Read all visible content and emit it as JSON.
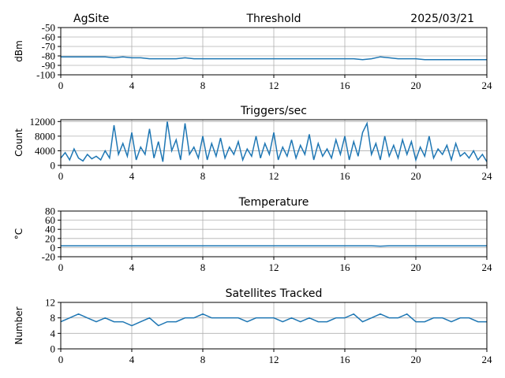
{
  "chart_data": [
    {
      "type": "line",
      "title_left": "AgSite",
      "title": "Threshold",
      "title_right": "2025/03/21",
      "ylabel": "dBm",
      "x": [
        0,
        0.5,
        1,
        1.5,
        2,
        2.5,
        3,
        3.5,
        4,
        4.5,
        5,
        5.5,
        6,
        6.5,
        7,
        7.5,
        8,
        8.5,
        9,
        9.5,
        10,
        10.5,
        11,
        11.5,
        12,
        12.5,
        13,
        13.5,
        14,
        14.5,
        15,
        15.5,
        16,
        16.5,
        17,
        17.5,
        18,
        18.5,
        19,
        19.5,
        20,
        20.5,
        21,
        21.5,
        22,
        22.5,
        23,
        23.5,
        24
      ],
      "series": [
        {
          "color": "#1f77b4",
          "values": [
            -81,
            -81,
            -81,
            -81,
            -81,
            -81,
            -82,
            -81,
            -82,
            -82,
            -83,
            -83,
            -83,
            -83,
            -82,
            -83,
            -83,
            -83,
            -83,
            -83,
            -83,
            -83,
            -83,
            -83,
            -83,
            -83,
            -83,
            -83,
            -83,
            -83,
            -83,
            -83,
            -83,
            -83,
            -84,
            -83,
            -81,
            -82,
            -83,
            -83,
            -83,
            -84,
            -84,
            -84,
            -84,
            -84,
            -84,
            -84,
            -84
          ]
        }
      ],
      "xlim": [
        0,
        24
      ],
      "xticks": [
        0,
        4,
        8,
        12,
        16,
        20,
        24
      ],
      "ylim": [
        -100,
        -50
      ],
      "yticks": [
        -100,
        -90,
        -80,
        -70,
        -60,
        -50
      ],
      "grid": true
    },
    {
      "type": "line",
      "title": "Triggers/sec",
      "ylabel": "Count",
      "x": [
        0,
        0.25,
        0.5,
        0.75,
        1,
        1.25,
        1.5,
        1.75,
        2,
        2.25,
        2.5,
        2.75,
        3,
        3.25,
        3.5,
        3.75,
        4,
        4.25,
        4.5,
        4.75,
        5,
        5.25,
        5.5,
        5.75,
        6,
        6.25,
        6.5,
        6.75,
        7,
        7.25,
        7.5,
        7.75,
        8,
        8.25,
        8.5,
        8.75,
        9,
        9.25,
        9.5,
        9.75,
        10,
        10.25,
        10.5,
        10.75,
        11,
        11.25,
        11.5,
        11.75,
        12,
        12.25,
        12.5,
        12.75,
        13,
        13.25,
        13.5,
        13.75,
        14,
        14.25,
        14.5,
        14.75,
        15,
        15.25,
        15.5,
        15.75,
        16,
        16.25,
        16.5,
        16.75,
        17,
        17.25,
        17.5,
        17.75,
        18,
        18.25,
        18.5,
        18.75,
        19,
        19.25,
        19.5,
        19.75,
        20,
        20.25,
        20.5,
        20.75,
        21,
        21.25,
        21.5,
        21.75,
        22,
        22.25,
        22.5,
        22.75,
        23,
        23.25,
        23.5,
        23.75,
        24
      ],
      "series": [
        {
          "color": "#1f77b4",
          "values": [
            2000,
            3500,
            1500,
            4500,
            2000,
            1200,
            3000,
            1800,
            2500,
            1500,
            4000,
            2000,
            11000,
            3000,
            6000,
            2500,
            9000,
            1500,
            5000,
            3000,
            10000,
            2000,
            6500,
            1000,
            12000,
            4000,
            7000,
            1500,
            11500,
            3000,
            5000,
            2000,
            8000,
            1500,
            6000,
            2500,
            7500,
            2000,
            5000,
            3000,
            6500,
            1500,
            4500,
            2500,
            8000,
            2000,
            6000,
            3000,
            9000,
            1500,
            5000,
            2500,
            7000,
            2000,
            5500,
            3000,
            8500,
            1500,
            6000,
            2500,
            4500,
            2000,
            7000,
            3000,
            8000,
            1500,
            6500,
            2500,
            9000,
            11500,
            3000,
            6000,
            1500,
            8000,
            2500,
            5500,
            2000,
            7000,
            3000,
            6500,
            1500,
            5000,
            2500,
            8000,
            2000,
            4500,
            3000,
            5500,
            1500,
            6000,
            2500,
            3500,
            2000,
            4000,
            1500,
            3000,
            1000
          ]
        }
      ],
      "xlim": [
        0,
        24
      ],
      "xticks": [
        0,
        4,
        8,
        12,
        16,
        20,
        24
      ],
      "ylim": [
        0,
        12500
      ],
      "yticks": [
        0,
        4000,
        8000,
        12000
      ],
      "grid": true
    },
    {
      "type": "line",
      "title": "Temperature",
      "ylabel": "°C",
      "x": [
        0,
        0.5,
        1,
        1.5,
        2,
        2.5,
        3,
        3.5,
        4,
        4.5,
        5,
        5.5,
        6,
        6.5,
        7,
        7.5,
        8,
        8.5,
        9,
        9.5,
        10,
        10.5,
        11,
        11.5,
        12,
        12.5,
        13,
        13.5,
        14,
        14.5,
        15,
        15.5,
        16,
        16.5,
        17,
        17.5,
        18,
        18.5,
        19,
        19.5,
        20,
        20.5,
        21,
        21.5,
        22,
        22.5,
        23,
        23.5,
        24
      ],
      "series": [
        {
          "color": "#1f77b4",
          "values": [
            4,
            4,
            4,
            4,
            4,
            4,
            4,
            4,
            4,
            4,
            4,
            4,
            4,
            4,
            4,
            4,
            4,
            4,
            4,
            4,
            4,
            4,
            4,
            4,
            4,
            4,
            4,
            4,
            4,
            4,
            4,
            4,
            4,
            4,
            4,
            4,
            3,
            4,
            4,
            4,
            4,
            4,
            4,
            4,
            4,
            4,
            4,
            4,
            4
          ]
        }
      ],
      "xlim": [
        0,
        24
      ],
      "xticks": [
        0,
        4,
        8,
        12,
        16,
        20,
        24
      ],
      "ylim": [
        -20,
        80
      ],
      "yticks": [
        -20,
        0,
        20,
        40,
        60,
        80
      ],
      "grid": true
    },
    {
      "type": "line",
      "title": "Satellites Tracked",
      "ylabel": "Number",
      "x": [
        0,
        0.5,
        1,
        1.5,
        2,
        2.5,
        3,
        3.5,
        4,
        4.5,
        5,
        5.5,
        6,
        6.5,
        7,
        7.5,
        8,
        8.5,
        9,
        9.5,
        10,
        10.5,
        11,
        11.5,
        12,
        12.5,
        13,
        13.5,
        14,
        14.5,
        15,
        15.5,
        16,
        16.5,
        17,
        17.5,
        18,
        18.5,
        19,
        19.5,
        20,
        20.5,
        21,
        21.5,
        22,
        22.5,
        23,
        23.5,
        24
      ],
      "series": [
        {
          "color": "#1f77b4",
          "values": [
            7,
            8,
            9,
            8,
            7,
            8,
            7,
            7,
            6,
            7,
            8,
            6,
            7,
            7,
            8,
            8,
            9,
            8,
            8,
            8,
            8,
            7,
            8,
            8,
            8,
            7,
            8,
            7,
            8,
            7,
            7,
            8,
            8,
            9,
            7,
            8,
            9,
            8,
            8,
            9,
            7,
            7,
            8,
            8,
            7,
            8,
            8,
            7,
            7
          ]
        }
      ],
      "xlim": [
        0,
        24
      ],
      "xticks": [
        0,
        4,
        8,
        12,
        16,
        20,
        24
      ],
      "ylim": [
        0,
        12
      ],
      "yticks": [
        0,
        4,
        8,
        12
      ],
      "grid": true
    }
  ]
}
